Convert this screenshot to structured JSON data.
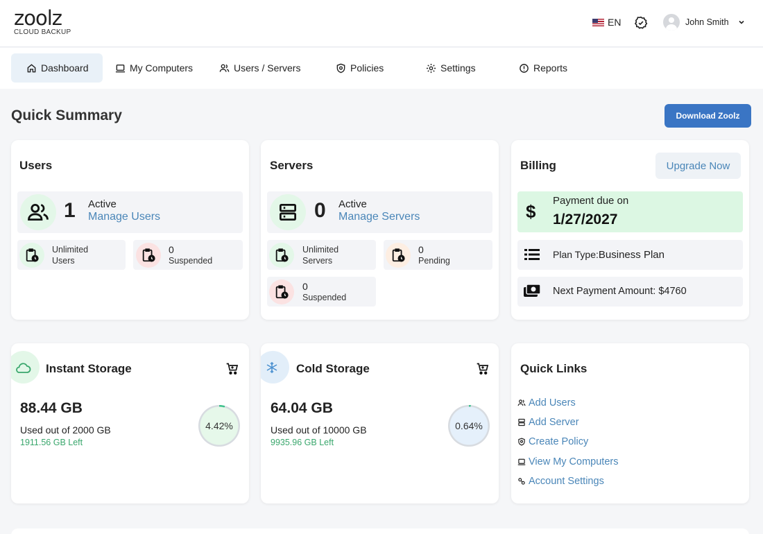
{
  "header": {
    "logo_main": "zoolz",
    "logo_sub": "CLOUD BACKUP",
    "language": "EN",
    "user_name": "John Smith"
  },
  "nav": [
    {
      "label": "Dashboard",
      "icon": "home-icon",
      "active": true
    },
    {
      "label": "My Computers",
      "icon": "laptop-icon"
    },
    {
      "label": "Users / Servers",
      "icon": "users-icon"
    },
    {
      "label": "Policies",
      "icon": "shield-icon"
    },
    {
      "label": "Settings",
      "icon": "gear-icon"
    },
    {
      "label": "Reports",
      "icon": "alert-circle-icon"
    }
  ],
  "summary": {
    "title": "Quick Summary",
    "download_label": "Download Zoolz"
  },
  "users_card": {
    "title": "Users",
    "active_count": "1",
    "active_label": "Active",
    "manage_label": "Manage Users",
    "unlimited_line1": "Unlimited",
    "unlimited_line2": "Users",
    "suspended_count": "0",
    "suspended_label": "Suspended"
  },
  "servers_card": {
    "title": "Servers",
    "active_count": "0",
    "active_label": "Active",
    "manage_label": "Manage Servers",
    "unlimited_line1": "Unlimited",
    "unlimited_line2": "Servers",
    "pending_count": "0",
    "pending_label": "Pending",
    "suspended_count": "0",
    "suspended_label": "Suspended"
  },
  "billing_card": {
    "title": "Billing",
    "upgrade_label": "Upgrade Now",
    "due_label": "Payment due on",
    "due_date": "1/27/2027",
    "plan_label": "Plan Type:",
    "plan_value": "Business Plan",
    "next_payment": "Next Payment Amount: $4760"
  },
  "instant_storage": {
    "title": "Instant Storage",
    "amount": "88.44 GB",
    "used_of": "Used out of  2000 GB",
    "left": "1911.56 GB Left",
    "percent_label": "4.42%",
    "percent": 4.42
  },
  "cold_storage": {
    "title": "Cold Storage",
    "amount": "64.04 GB",
    "used_of": "Used out of  10000 GB",
    "left": "9935.96 GB Left",
    "percent_label": "0.64%",
    "percent": 0.64
  },
  "quick_links": {
    "title": "Quick Links",
    "items": [
      {
        "label": "Add Users",
        "icon": "users-icon"
      },
      {
        "label": "Add Server",
        "icon": "server-icon"
      },
      {
        "label": "Create Policy",
        "icon": "shield-icon"
      },
      {
        "label": "View My Computers",
        "icon": "laptop-icon"
      },
      {
        "label": "Account Settings",
        "icon": "settings-icon"
      }
    ]
  },
  "colors": {
    "accent": "#3a75c4",
    "link": "#4a86b8",
    "green_tile": "#dcf7e3",
    "left_text": "#3aa76d"
  }
}
